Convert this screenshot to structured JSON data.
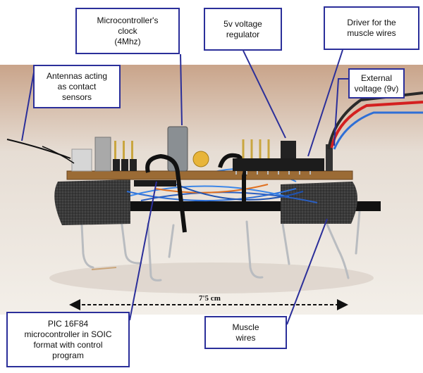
{
  "callouts": {
    "clock": [
      "Microcontroller's",
      "clock",
      "(4Mhz)"
    ],
    "regulator": [
      "5v voltage",
      "regulator"
    ],
    "driver": [
      "Driver for the",
      "muscle wires"
    ],
    "antennas": [
      "Antennas acting",
      "as contact",
      "sensors"
    ],
    "voltage": [
      "External",
      "voltage (9v)"
    ],
    "pic": [
      "PIC 16F84",
      "microcontroller in SOIC",
      "format with control",
      "program"
    ],
    "muscle": [
      "Muscle",
      "wires"
    ]
  },
  "dimension": {
    "label": "7'5 cm"
  },
  "colors": {
    "callout_border": "#2b2f9a",
    "leader_line": "#2b2f9a",
    "photo_bg": "#e9e3dc"
  }
}
